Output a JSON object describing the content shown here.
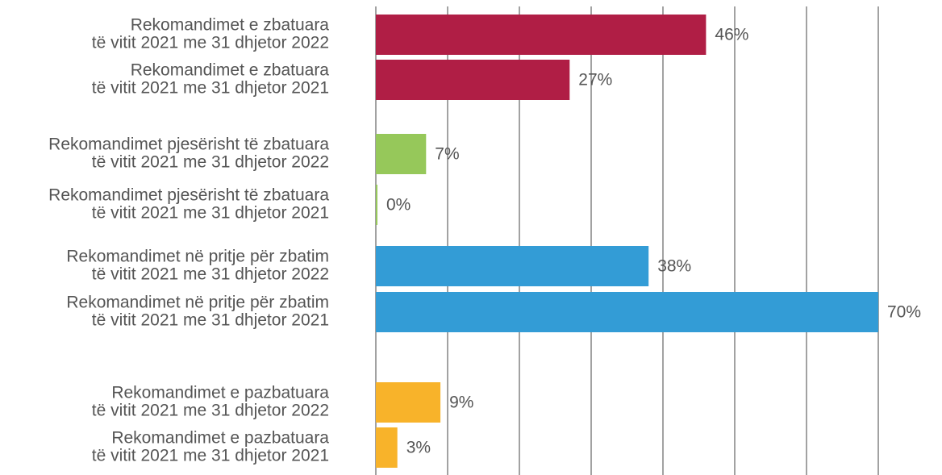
{
  "chart_data": {
    "type": "barh",
    "categories": [
      [
        "Rekomandimet e zbatuara",
        "të vitit 2021 me 31 dhjetor 2022"
      ],
      [
        "Rekomandimet e zbatuara",
        "të vitit 2021 me 31 dhjetor 2021"
      ],
      [
        "Rekomandimet pjesërisht të zbatuara",
        "të vitit 2021 me 31 dhjetor 2022"
      ],
      [
        "Rekomandimet pjesërisht të zbatuara",
        "të vitit 2021 me 31 dhjetor 2021"
      ],
      [
        "Rekomandimet në pritje për zbatim",
        "të vitit 2021 me 31 dhjetor 2022"
      ],
      [
        "Rekomandimet në pritje për zbatim",
        "të vitit 2021 me 31 dhjetor 2021"
      ],
      [
        "Rekomandimet e pazbatuara",
        "të vitit 2021 me 31 dhjetor 2022"
      ],
      [
        "Rekomandimet e pazbatuara",
        "të vitit 2021 me 31 dhjetor 2021"
      ]
    ],
    "values": [
      46,
      27,
      7,
      0,
      38,
      70,
      9,
      3
    ],
    "value_labels": [
      "46%",
      "27%",
      "7%",
      "0%",
      "38%",
      "70%",
      "9%",
      "3%"
    ],
    "colors": [
      "#b01e45",
      "#b01e45",
      "#96c85a",
      "#96c85a",
      "#339cd6",
      "#339cd6",
      "#f8b32a",
      "#f8b32a"
    ],
    "xlim": [
      0,
      70
    ],
    "xticks": [
      0,
      10,
      20,
      30,
      40,
      50,
      60,
      70
    ],
    "grid": true
  }
}
